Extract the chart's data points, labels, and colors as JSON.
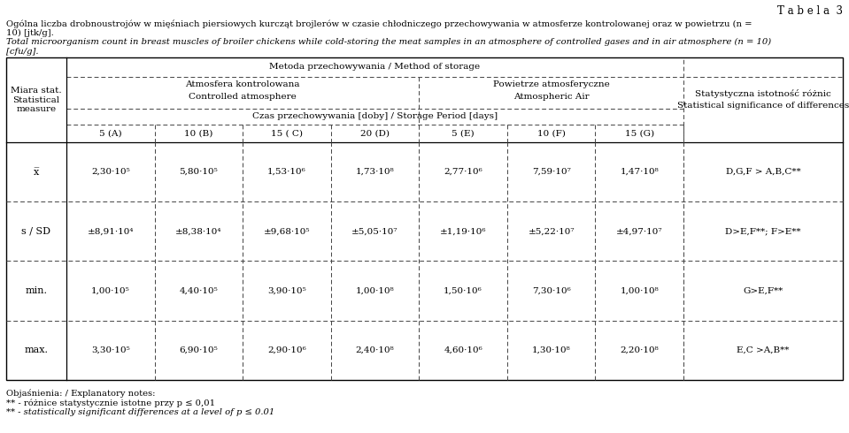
{
  "title": "T a b e l a  3",
  "header_pl_line1": "Ogólna liczba drobnoustrojów w mięśniach piersiowych kurcząt brojlerów w czasie chłodniczego przechowywania w atmosferze kontrolowanej oraz w powietrzu (n =",
  "header_pl_line2": "10) [jtk/g].",
  "header_en_line1": "Total microorganism count in breast muscles of broiler chickens while cold-storing the meat samples in an atmosphere of controlled gases and in air atmosphere (n = 10)",
  "header_en_line2": "[cfu/g].",
  "col_header_method": "Metoda przechowywania / Method of storage",
  "col_header_atm_pl": "Atmosfera kontrolowana",
  "col_header_atm_en": "Controlled atmosphere",
  "col_header_air_pl": "Powietrze atmosferyczne",
  "col_header_air_en": "Atmospheric Air",
  "col_header_storage": "Czas przechowywania [doby] / Storage Period [days]",
  "col_header_stat_pl": "Statystyczna istotność różnic",
  "col_header_stat_en": "Statistical significance of differences",
  "row_header_line1": "Miara stat.",
  "row_header_line2": "Statistical",
  "row_header_line3": "measure",
  "col_labels": [
    "5 (A)",
    "10 (B)",
    "15 ( C)",
    "20 (D)",
    "5 (E)",
    "10 (F)",
    "15 (G)"
  ],
  "rows": [
    {
      "label": "x̅",
      "values": [
        "2,30·10⁵",
        "5,80·10⁵",
        "1,53·10⁶",
        "1,73·10⁸",
        "2,77·10⁶",
        "7,59·10⁷",
        "1,47·10⁸"
      ],
      "stat": "D,G,F > A,B,C**"
    },
    {
      "label": "s / SD",
      "values": [
        "±8,91·10⁴",
        "±8,38·10⁴",
        "±9,68·10⁵",
        "±5,05·10⁷",
        "±1,19·10⁶",
        "±5,22·10⁷",
        "±4,97·10⁷"
      ],
      "stat": "D>E,F**; F>E**"
    },
    {
      "label": "min.",
      "values": [
        "1,00·10⁵",
        "4,40·10⁵",
        "3,90·10⁵",
        "1,00·10⁸",
        "1,50·10⁶",
        "7,30·10⁶",
        "1,00·10⁸"
      ],
      "stat": "G>E,F**"
    },
    {
      "label": "max.",
      "values": [
        "3,30·10⁵",
        "6,90·10⁵",
        "2,90·10⁶",
        "2,40·10⁸",
        "4,60·10⁶",
        "1,30·10⁸",
        "2,20·10⁸"
      ],
      "stat": "E,C >A,B**"
    }
  ],
  "footnote_1": "Objaśnienia: / Explanatory notes:",
  "footnote_2": "** - różnice statystycznie istotne przy p ≤ 0,01",
  "footnote_3": "** - statistically significant differences at a level of p ≤ 0.01",
  "background_color": "#ffffff",
  "text_color": "#000000"
}
